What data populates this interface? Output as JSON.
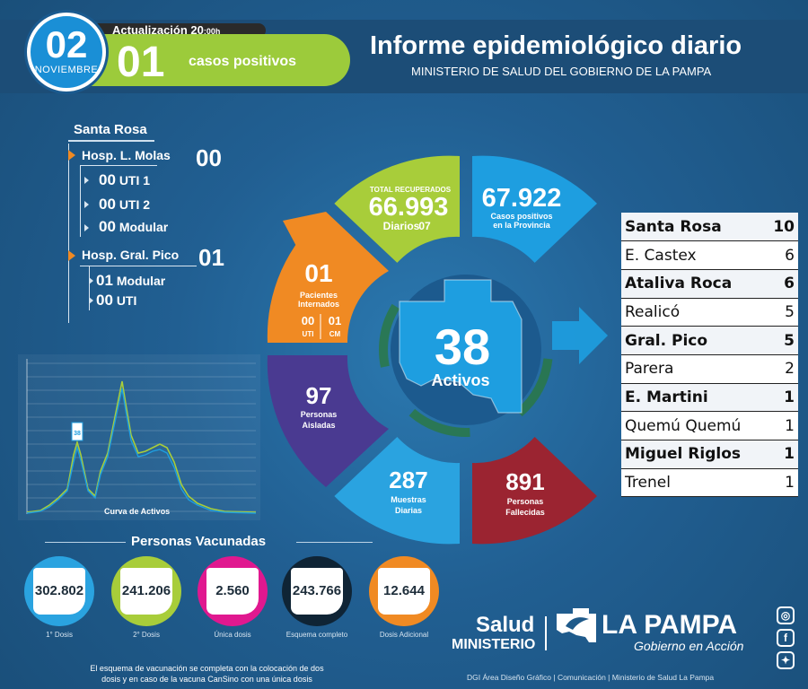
{
  "header": {
    "day": "02",
    "month": "NOVIEMBRE",
    "update_label": "Actualización 20",
    "update_time": ":00h",
    "positive_count": "01",
    "positive_label": "casos positivos",
    "title": "Informe epidemiológico diario",
    "subtitle": "MINISTERIO DE SALUD DEL GOBIERNO DE LA PAMPA"
  },
  "hospitals": {
    "city": "Santa Rosa",
    "molas": {
      "name": "Hosp. L. Molas",
      "count": "00",
      "items": [
        {
          "count": "00",
          "label": "UTI 1"
        },
        {
          "count": "00",
          "label": "UTI 2"
        },
        {
          "count": "00",
          "label": "Modular"
        }
      ]
    },
    "pico": {
      "name": "Hosp. Gral. Pico",
      "count": "01",
      "items": [
        {
          "count": "01",
          "label": "Modular"
        },
        {
          "count": "00",
          "label": "UTI"
        }
      ]
    }
  },
  "wheel": {
    "center_value": "38",
    "center_label": "Activos",
    "recovered": {
      "label_top": "TOTAL RECUPERADOS",
      "value": "66.993",
      "daily_label": "Diarios",
      "daily_value": "07"
    },
    "positives": {
      "value": "67.922",
      "label_1": "Casos positivos",
      "label_2": "en la Provincia"
    },
    "interned": {
      "value": "01",
      "label_1": "Pacientes",
      "label_2": "Internados",
      "uti_value": "00",
      "uti_label": "UTI",
      "cm_value": "01",
      "cm_label": "CM"
    },
    "isolated": {
      "value": "97",
      "label_1": "Personas",
      "label_2": "Aisladas"
    },
    "samples": {
      "value": "287",
      "label_1": "Muestras",
      "label_2": "Diarias"
    },
    "deceased": {
      "value": "891",
      "label_1": "Personas",
      "label_2": "Fallecidas"
    }
  },
  "locations": [
    {
      "name": "Santa Rosa",
      "count": "10"
    },
    {
      "name": "E. Castex",
      "count": "6"
    },
    {
      "name": "Ataliva Roca",
      "count": "6"
    },
    {
      "name": "Realicó",
      "count": "5"
    },
    {
      "name": "Gral. Pico",
      "count": "5"
    },
    {
      "name": "Parera",
      "count": "2"
    },
    {
      "name": "E. Martini",
      "count": "1"
    },
    {
      "name": "Quemú Quemú",
      "count": "1"
    },
    {
      "name": "Miguel Riglos",
      "count": "1"
    },
    {
      "name": "Trenel",
      "count": "1"
    }
  ],
  "curve": {
    "title": "Curva de Activos",
    "marker": "38"
  },
  "vaccines": {
    "title": "Personas Vacunadas",
    "items": [
      {
        "value": "302.802",
        "label": "1° Dosis",
        "color": "#2aa3e0"
      },
      {
        "value": "241.206",
        "label": "2° Dosis",
        "color": "#a8cd3a"
      },
      {
        "value": "2.560",
        "label": "Única dosis",
        "color": "#e0188f"
      },
      {
        "value": "243.766",
        "label": "Esquema completo",
        "color": "#0f2435"
      },
      {
        "value": "12.644",
        "label": "Dosis Adicional",
        "color": "#f08a23"
      }
    ]
  },
  "footer": {
    "note": "El esquema de vacunación se completa con la colocación de dos dosis y en caso de la vacuna CanSino con una única dosis",
    "credits": "DGI Área Diseño Gráfico  |  Comunicación  |  Ministerio de Salud La Pampa",
    "salud": "Salud",
    "ministerio": "MINISTERIO",
    "lapampa": "LA PAMPA",
    "gobierno": "Gobierno en Acción"
  },
  "colors": {
    "background": "#1f5a8a",
    "recovered": "#a8cd3a",
    "positives": "#1e9ee0",
    "interned": "#f08a23",
    "isolated": "#4a3a91",
    "samples": "#2aa3e0",
    "deceased": "#9b2431"
  },
  "icons": [
    "instagram-icon",
    "facebook-icon",
    "twitter-icon"
  ]
}
